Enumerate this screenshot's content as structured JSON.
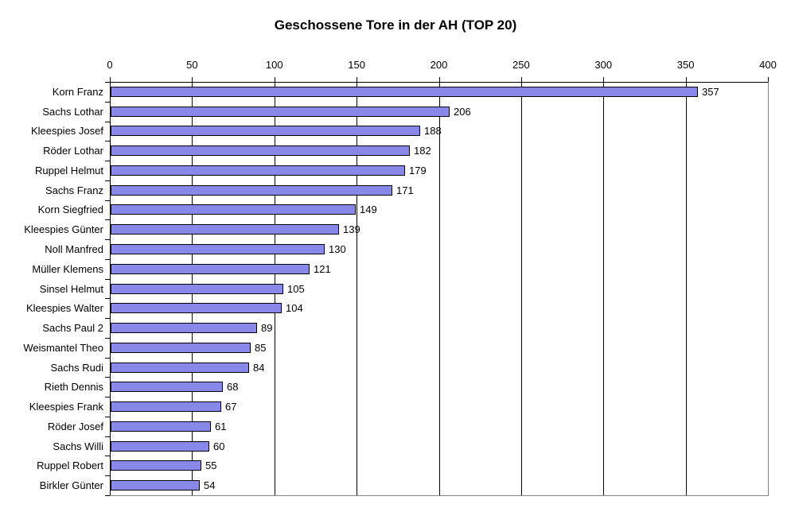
{
  "title": "Geschossene Tore in der AH (TOP 20)",
  "colors": {
    "background": "#FFFFFF",
    "bar_fill": "#8888E8",
    "bar_border": "#000000",
    "gridline": "#000000",
    "plot_border_gray": "#848484",
    "text": "#000000"
  },
  "chart_data": {
    "type": "bar",
    "orientation": "horizontal",
    "title": "Geschossene Tore in der AH (TOP 20)",
    "categories": [
      "Korn Franz",
      "Sachs Lothar",
      "Kleespies Josef",
      "Röder Lothar",
      "Ruppel Helmut",
      "Sachs Franz",
      "Korn Siegfried",
      "Kleespies Günter",
      "Noll Manfred",
      "Müller Klemens",
      "Sinsel Helmut",
      "Kleespies Walter",
      "Sachs Paul 2",
      "Weismantel Theo",
      "Sachs Rudi",
      "Rieth Dennis",
      "Kleespies Frank",
      "Röder Josef",
      "Sachs Willi",
      "Ruppel Robert",
      "Birkler Günter"
    ],
    "values": [
      357,
      206,
      188,
      182,
      179,
      171,
      149,
      139,
      130,
      121,
      105,
      104,
      89,
      85,
      84,
      68,
      67,
      61,
      60,
      55,
      54
    ],
    "value_axis": {
      "position": "top",
      "min": 0,
      "max": 400,
      "tick_interval": 50,
      "tick_labels": [
        "0",
        "50",
        "100",
        "150",
        "200",
        "250",
        "300",
        "350",
        "400"
      ]
    },
    "data_labels": true,
    "grid": true,
    "legend": false
  }
}
